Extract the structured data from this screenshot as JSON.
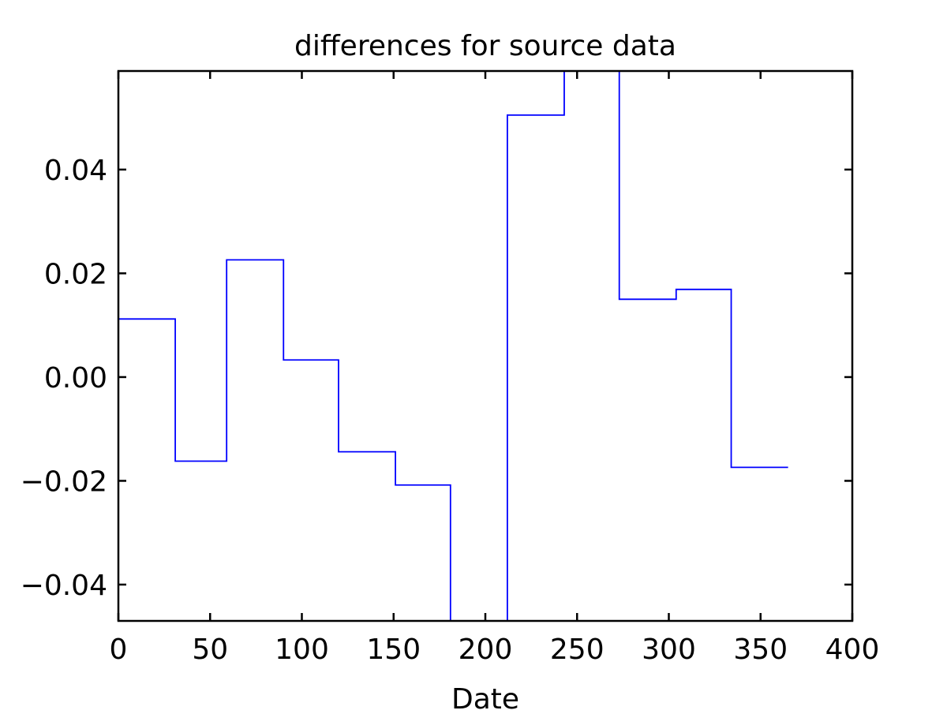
{
  "chart_data": {
    "type": "line",
    "drawstyle": "steps-post",
    "title": "differences for source data",
    "xlabel": "Date",
    "ylabel": "",
    "xlim": [
      0,
      400
    ],
    "ylim": [
      -0.047,
      0.059
    ],
    "xticks": [
      0,
      50,
      100,
      150,
      200,
      250,
      300,
      350,
      400
    ],
    "xtick_labels": [
      "0",
      "50",
      "100",
      "150",
      "200",
      "250",
      "300",
      "350",
      "400"
    ],
    "yticks": [
      -0.04,
      -0.02,
      0.0,
      0.02,
      0.04
    ],
    "ytick_labels": [
      "−0.04",
      "−0.02",
      "0.00",
      "0.02",
      "0.04"
    ],
    "grid": false,
    "legend": "none",
    "series": [
      {
        "color": "#0000ff",
        "x": [
          0,
          31,
          59,
          90,
          120,
          151,
          181,
          212,
          243,
          273,
          304,
          334,
          365
        ],
        "y": [
          0.0112,
          -0.0162,
          0.0226,
          0.0033,
          -0.0144,
          -0.0208,
          -0.047,
          0.0505,
          0.062,
          0.015,
          0.0169,
          -0.0174,
          -0.0174
        ]
      }
    ]
  }
}
